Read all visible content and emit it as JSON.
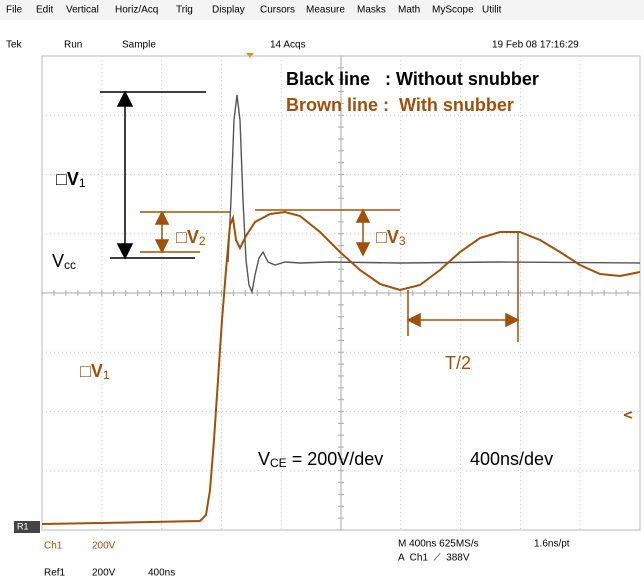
{
  "menu": [
    "File",
    "Edit",
    "Vertical",
    "Horiz/Acq",
    "Trig",
    "Display",
    "Cursors",
    "Measure",
    "Masks",
    "Math",
    "MyScope",
    "Utilit"
  ],
  "status": {
    "brand": "Tek",
    "state": "Run",
    "mode": "Sample",
    "acqs": "14 Acqs",
    "datetime": "19 Feb 08 17:16:29"
  },
  "legend": {
    "black": "Black line   : Without snubber",
    "brown": "Brown line :  With snubber"
  },
  "annotations": {
    "dv1_black": {
      "symbol": "□V",
      "sub": "1"
    },
    "vcc": {
      "symbol": "V",
      "sub": "cc"
    },
    "dv2": {
      "symbol": "□V",
      "sub": "2"
    },
    "dv3": {
      "symbol": "□V",
      "sub": "3"
    },
    "half_period": "T/2",
    "dv1_brown": {
      "symbol": "□V",
      "sub": "1"
    },
    "vce": {
      "symbol": "V",
      "sub": "CE",
      "rest": " = 200V/dev"
    },
    "timebase": "400ns/dev"
  },
  "ref_marker": "R1",
  "readout": {
    "ch1": "Ch1",
    "ch1_scale": "200V",
    "horiz": "M 400ns 625MS/s",
    "resolution": "1.6ns/pt",
    "trigger": "A  Ch1  ⟋  388V",
    "ref1": "Ref1",
    "ref1_scale": "200V",
    "ref1_time": "400ns"
  }
}
